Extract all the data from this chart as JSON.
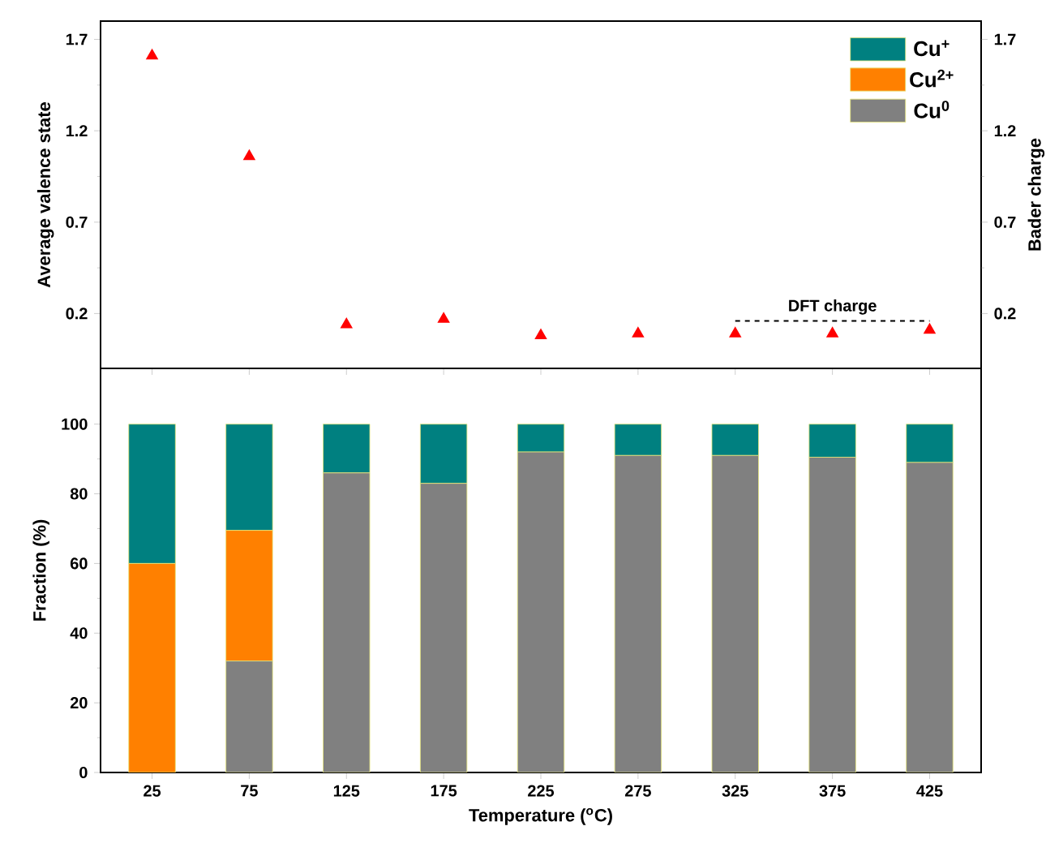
{
  "chart_data": [
    {
      "type": "scatter",
      "categories": [
        "25",
        "75",
        "125",
        "175",
        "225",
        "275",
        "325",
        "375",
        "425"
      ],
      "ylabel": "Average valence state",
      "y2label": "Bader charge",
      "ylim": [
        -0.1,
        1.8
      ],
      "yticks": [
        0.2,
        0.7,
        1.2,
        1.7
      ],
      "y2lim": [
        -0.1,
        1.8
      ],
      "y2ticks": [
        0.2,
        0.7,
        1.2,
        1.7
      ],
      "marker": "triangle",
      "tick_labels": "y",
      "series": [
        {
          "color": "#ff0000",
          "values": [
            1.61,
            1.06,
            0.14,
            0.17,
            0.08,
            0.09,
            0.09,
            0.09,
            0.11
          ]
        },
        {
          "type": "line",
          "axis": "y2",
          "name": "DFT charge",
          "color": "#000000",
          "line_style": "dashed",
          "marker": "none",
          "values": [
            null,
            null,
            null,
            null,
            null,
            null,
            0.16,
            0.16,
            0.16
          ]
        }
      ]
    },
    {
      "type": "bar",
      "stacked": true,
      "categories": [
        "25",
        "75",
        "125",
        "175",
        "225",
        "275",
        "325",
        "375",
        "425"
      ],
      "xlabel": "Temperature ($^{o}$C)",
      "ylabel": "Fraction (%)",
      "ylim": [
        0,
        116
      ],
      "yticks": [
        0,
        20,
        40,
        60,
        80,
        100
      ],
      "legend": "top right",
      "series": [
        {
          "name": "Cu$^{0}$",
          "color": "#808080",
          "values": [
            0,
            32,
            86,
            83,
            92,
            91,
            91,
            90.5,
            89
          ]
        },
        {
          "name": "Cu$^{2+}$",
          "color": "#ff8000",
          "values": [
            60,
            37.5,
            0,
            0,
            0,
            0,
            0,
            0,
            0
          ]
        },
        {
          "name": "Cu$^{+}$",
          "color": "#008080",
          "values": [
            40,
            30.5,
            14,
            17,
            8,
            9,
            9,
            9.5,
            11
          ]
        }
      ]
    }
  ]
}
